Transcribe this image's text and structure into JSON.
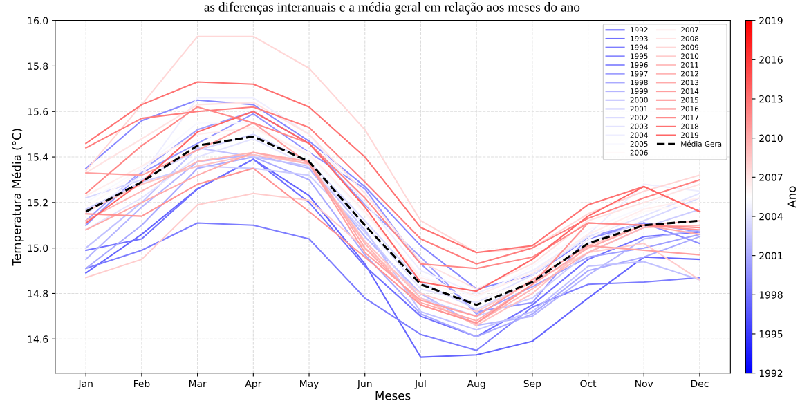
{
  "chart_data": {
    "type": "line",
    "title": "as diferenças interanuais e a média geral em relação aos meses do ano",
    "xlabel": "Meses",
    "ylabel": "Temperatura Média (°C)",
    "clabel": "Ano",
    "clim": [
      1992,
      2019
    ],
    "cticks": [
      1992,
      1995,
      1998,
      2001,
      2004,
      2007,
      2010,
      2013,
      2016,
      2019
    ],
    "categories": [
      "Jan",
      "Feb",
      "Mar",
      "Apr",
      "May",
      "Jun",
      "Jul",
      "Aug",
      "Sep",
      "Oct",
      "Nov",
      "Dec"
    ],
    "ylim": [
      14.45,
      16.0
    ],
    "yticks": [
      {
        "value": 14.6,
        "label": "14.6"
      },
      {
        "value": 14.8,
        "label": "14.8"
      },
      {
        "value": 15.0,
        "label": "15.0"
      },
      {
        "value": 15.2,
        "label": "15.2"
      },
      {
        "value": 15.4,
        "label": "15.4"
      },
      {
        "value": 15.6,
        "label": "15.6"
      },
      {
        "value": 15.8,
        "label": "15.8"
      },
      {
        "value": 16.0,
        "label": "16.0"
      }
    ],
    "grid": true,
    "legend": "top right",
    "marker": "none",
    "line_style": "solid",
    "series": [
      {
        "name": "1992",
        "color": "#6666ff",
        "values": [
          14.89,
          15.06,
          15.26,
          15.39,
          15.23,
          14.93,
          14.52,
          14.53,
          14.59,
          14.78,
          14.96,
          14.95
        ]
      },
      {
        "name": "1993",
        "color": "#7171ff",
        "values": [
          14.99,
          15.04,
          15.26,
          15.39,
          15.2,
          14.92,
          14.7,
          14.61,
          14.75,
          14.95,
          15.05,
          15.07
        ]
      },
      {
        "name": "1994",
        "color": "#7d7dff",
        "values": [
          14.91,
          14.99,
          15.11,
          15.1,
          15.04,
          14.78,
          14.62,
          14.55,
          14.74,
          14.84,
          14.85,
          14.87
        ]
      },
      {
        "name": "1995",
        "color": "#8888ff",
        "values": [
          15.35,
          15.56,
          15.65,
          15.63,
          15.47,
          15.27,
          15.01,
          14.82,
          14.88,
          15.04,
          15.11,
          15.02
        ]
      },
      {
        "name": "1996",
        "color": "#9393ff",
        "values": [
          15.1,
          15.33,
          15.46,
          15.59,
          15.42,
          15.26,
          14.93,
          14.72,
          14.76,
          15.05,
          15.11,
          15.07
        ]
      },
      {
        "name": "1997",
        "color": "#9f9fff",
        "values": [
          15.12,
          15.34,
          15.52,
          15.6,
          15.46,
          15.19,
          14.96,
          14.71,
          14.83,
          14.96,
          15.0,
          15.06
        ]
      },
      {
        "name": "1998",
        "color": "#aaaaff",
        "values": [
          14.91,
          15.1,
          15.35,
          15.4,
          15.3,
          14.97,
          14.71,
          14.61,
          14.71,
          14.9,
          14.96,
          15.05
        ]
      },
      {
        "name": "1999",
        "color": "#b5b5ff",
        "values": [
          14.95,
          15.18,
          15.38,
          15.41,
          15.35,
          15.05,
          14.8,
          14.66,
          14.7,
          14.88,
          15.04,
          15.08
        ]
      },
      {
        "name": "2000",
        "color": "#c1c1ff",
        "values": [
          15.0,
          15.2,
          15.44,
          15.4,
          15.36,
          15.08,
          14.72,
          14.64,
          14.72,
          14.92,
          14.94,
          14.86
        ]
      },
      {
        "name": "2001",
        "color": "#ccccff",
        "values": [
          15.17,
          15.29,
          15.36,
          15.35,
          15.32,
          15.07,
          14.78,
          14.7,
          14.78,
          14.98,
          15.09,
          15.17
        ]
      },
      {
        "name": "2002",
        "color": "#d7d7ff",
        "values": [
          15.22,
          15.3,
          15.43,
          15.5,
          15.38,
          15.12,
          14.85,
          14.73,
          14.85,
          15.02,
          15.12,
          15.22
        ]
      },
      {
        "name": "2003",
        "color": "#e3e3ff",
        "values": [
          15.08,
          15.22,
          15.4,
          15.48,
          15.36,
          15.1,
          14.82,
          14.76,
          14.88,
          15.05,
          15.14,
          15.24
        ]
      },
      {
        "name": "2004",
        "color": "#eeeeff",
        "values": [
          15.15,
          15.32,
          15.66,
          15.66,
          15.5,
          15.2,
          14.9,
          14.8,
          14.9,
          15.06,
          15.28,
          15.25
        ]
      },
      {
        "name": "2005",
        "color": "#f9f9ff",
        "values": [
          15.2,
          15.35,
          15.55,
          15.55,
          15.4,
          15.15,
          14.88,
          14.78,
          14.92,
          15.08,
          15.18,
          15.3
        ]
      },
      {
        "name": "2006",
        "color": "#fff9f9",
        "values": [
          15.18,
          15.34,
          15.48,
          15.52,
          15.42,
          15.15,
          14.86,
          14.77,
          14.86,
          15.04,
          15.16,
          15.2
        ]
      },
      {
        "name": "2007",
        "color": "#ffeeee",
        "values": [
          15.23,
          15.36,
          15.5,
          15.53,
          15.41,
          15.16,
          14.87,
          14.79,
          14.89,
          15.06,
          15.17,
          15.22
        ]
      },
      {
        "name": "2008",
        "color": "#ffe3e3",
        "values": [
          15.33,
          15.48,
          15.63,
          15.64,
          15.5,
          15.24,
          14.94,
          14.82,
          14.93,
          15.12,
          15.2,
          15.28
        ]
      },
      {
        "name": "2009",
        "color": "#ffd7d7",
        "values": [
          15.34,
          15.63,
          15.93,
          15.93,
          15.79,
          15.52,
          15.12,
          14.98,
          15.0,
          15.15,
          15.25,
          15.32
        ]
      },
      {
        "name": "2010",
        "color": "#ffcccc",
        "values": [
          14.87,
          14.95,
          15.19,
          15.24,
          15.21,
          15.0,
          14.8,
          14.72,
          14.85,
          14.98,
          15.02,
          14.86
        ]
      },
      {
        "name": "2011",
        "color": "#ffc1c1",
        "values": [
          15.16,
          15.28,
          15.36,
          15.41,
          15.37,
          15.03,
          14.78,
          14.66,
          14.8,
          15.01,
          15.1,
          15.12
        ]
      },
      {
        "name": "2012",
        "color": "#ffb5b5",
        "values": [
          15.12,
          15.25,
          15.38,
          15.42,
          15.37,
          15.02,
          14.75,
          14.67,
          14.82,
          14.98,
          15.09,
          15.1
        ]
      },
      {
        "name": "2013",
        "color": "#ffaaaa",
        "values": [
          15.08,
          15.2,
          15.32,
          15.42,
          15.38,
          15.0,
          14.76,
          14.68,
          14.84,
          15.0,
          15.1,
          15.06
        ]
      },
      {
        "name": "2014",
        "color": "#ff9f9f",
        "values": [
          15.33,
          15.32,
          15.43,
          15.55,
          15.37,
          14.98,
          14.77,
          14.7,
          14.86,
          15.01,
          14.99,
          14.97
        ]
      },
      {
        "name": "2015",
        "color": "#ff9393",
        "values": [
          15.15,
          15.14,
          15.28,
          15.35,
          15.16,
          14.96,
          14.75,
          14.67,
          14.84,
          15.11,
          15.1,
          15.08
        ]
      },
      {
        "name": "2016",
        "color": "#ff8888",
        "values": [
          15.24,
          15.45,
          15.62,
          15.55,
          15.46,
          15.22,
          14.93,
          14.91,
          14.96,
          15.11,
          15.1,
          15.09
        ]
      },
      {
        "name": "2017",
        "color": "#ff7d7d",
        "values": [
          15.44,
          15.57,
          15.6,
          15.62,
          15.53,
          15.29,
          15.04,
          14.93,
          15.0,
          15.13,
          15.22,
          15.3
        ]
      },
      {
        "name": "2018",
        "color": "#ff7171",
        "values": [
          15.46,
          15.63,
          15.73,
          15.72,
          15.62,
          15.4,
          15.09,
          14.98,
          15.01,
          15.19,
          15.27,
          15.16
        ]
      },
      {
        "name": "2019",
        "color": "#ff6666",
        "values": [
          15.11,
          15.29,
          15.51,
          15.6,
          15.46,
          15.18,
          14.85,
          14.81,
          14.95,
          15.14,
          15.27,
          15.16
        ]
      },
      {
        "name": "Média Geral",
        "color": "#000000",
        "line_style": "dashed",
        "values": [
          15.16,
          15.29,
          15.45,
          15.49,
          15.38,
          15.1,
          14.84,
          14.75,
          14.85,
          15.02,
          15.1,
          15.12
        ]
      }
    ]
  }
}
